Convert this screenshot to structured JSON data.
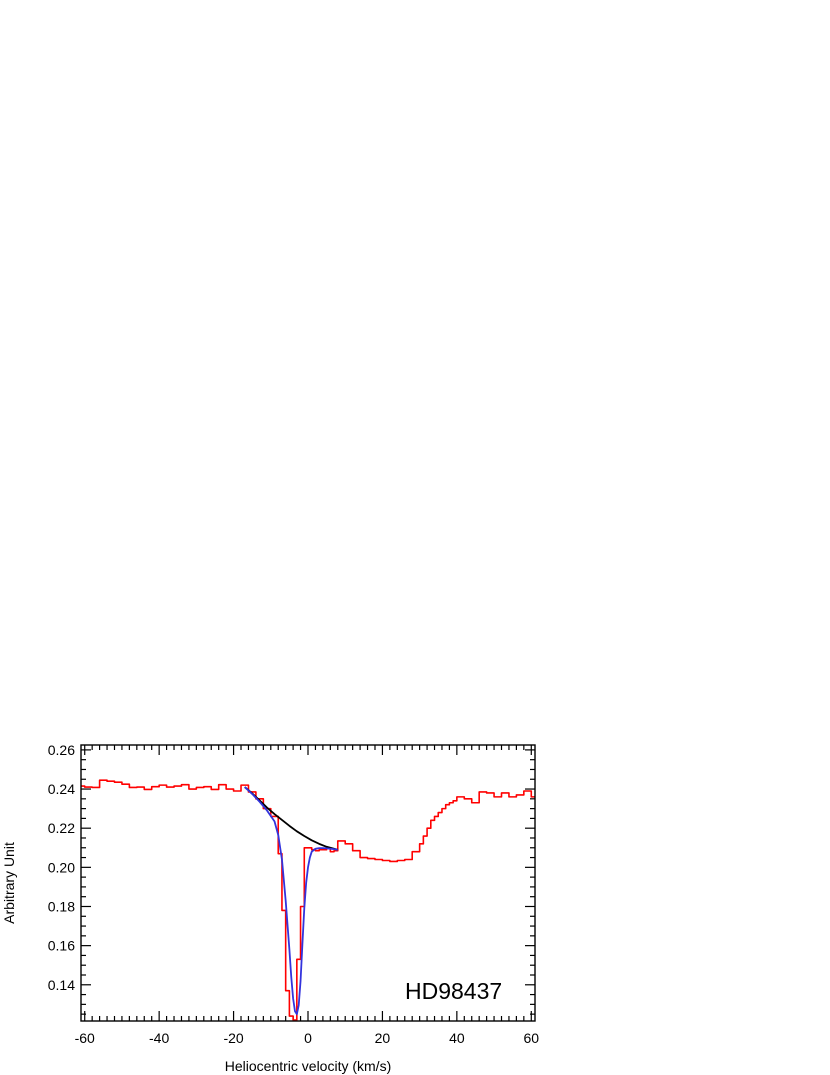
{
  "chart_data": {
    "type": "line",
    "title": "",
    "xlabel": "Heliocentric velocity (km/s)",
    "ylabel": "Arbitrary Unit",
    "annotation": "HD98437",
    "xlim": [
      -61,
      61
    ],
    "ylim": [
      0.1215,
      0.2625
    ],
    "xticks": [
      -60,
      -40,
      -20,
      0,
      20,
      40,
      60
    ],
    "yticks": [
      0.14,
      0.16,
      0.18,
      0.2,
      0.22,
      0.24,
      0.26
    ],
    "xtick_labels": [
      "-60",
      "-40",
      "-20",
      "0",
      "20",
      "40",
      "60"
    ],
    "ytick_labels": [
      "0.14",
      "0.16",
      "0.18",
      "0.20",
      "0.22",
      "0.24",
      "0.26"
    ],
    "grid": false,
    "legend": "none",
    "series": [
      {
        "style": "step",
        "color": "#ff0000",
        "x": [
          -62,
          -60,
          -58,
          -56,
          -54,
          -52,
          -50,
          -48,
          -46,
          -44,
          -42,
          -40,
          -38,
          -36,
          -34,
          -32,
          -30,
          -28,
          -26,
          -24,
          -22,
          -20,
          -18,
          -16,
          -14,
          -12,
          -10,
          -8,
          -7,
          -6,
          -5,
          -4,
          -3,
          -2,
          -1,
          0,
          1,
          2,
          3,
          4,
          5,
          6,
          7,
          8,
          10,
          12,
          14,
          16,
          18,
          20,
          22,
          24,
          26,
          28,
          30,
          31,
          32,
          33,
          34,
          35,
          36,
          37,
          38,
          39,
          40,
          42,
          44,
          46,
          48,
          50,
          52,
          54,
          56,
          58,
          60,
          62
        ],
        "y": [
          0.2415,
          0.241,
          0.2408,
          0.2445,
          0.244,
          0.2435,
          0.2425,
          0.2408,
          0.241,
          0.2398,
          0.2412,
          0.242,
          0.241,
          0.2415,
          0.2422,
          0.24,
          0.2408,
          0.2412,
          0.2398,
          0.2422,
          0.24,
          0.239,
          0.242,
          0.2385,
          0.235,
          0.23,
          0.226,
          0.207,
          0.178,
          0.137,
          0.124,
          0.122,
          0.153,
          0.18,
          0.21,
          0.21,
          0.209,
          0.2085,
          0.209,
          0.209,
          0.21,
          0.208,
          0.2085,
          0.2135,
          0.212,
          0.2085,
          0.205,
          0.2045,
          0.204,
          0.2035,
          0.203,
          0.2035,
          0.204,
          0.208,
          0.212,
          0.216,
          0.22,
          0.224,
          0.226,
          0.228,
          0.23,
          0.232,
          0.233,
          0.234,
          0.236,
          0.235,
          0.233,
          0.2385,
          0.238,
          0.236,
          0.238,
          0.236,
          0.237,
          0.239,
          0.236,
          0.236
        ]
      },
      {
        "style": "line",
        "color": "#000000",
        "x": [
          -17,
          -15,
          -13,
          -11,
          -9,
          -7,
          -5,
          -3,
          -1,
          1,
          3,
          5,
          7,
          8
        ],
        "y": [
          0.241,
          0.2378,
          0.2342,
          0.2305,
          0.2272,
          0.2242,
          0.2212,
          0.2184,
          0.216,
          0.2138,
          0.212,
          0.2105,
          0.2095,
          0.209
        ]
      },
      {
        "style": "line",
        "color": "#3333dd",
        "x": [
          -17,
          -15,
          -13,
          -11,
          -9,
          -8,
          -7,
          -6,
          -5,
          -4.5,
          -4,
          -3.5,
          -3,
          -2.5,
          -2,
          -1.5,
          -1,
          -0.5,
          0,
          0.5,
          1,
          2,
          3,
          4,
          5,
          6,
          7,
          8
        ],
        "y": [
          0.241,
          0.2375,
          0.2335,
          0.229,
          0.2235,
          0.2165,
          0.204,
          0.183,
          0.158,
          0.144,
          0.133,
          0.1265,
          0.125,
          0.1295,
          0.142,
          0.161,
          0.179,
          0.192,
          0.2,
          0.205,
          0.208,
          0.2095,
          0.2098,
          0.2098,
          0.2097,
          0.2095,
          0.2093,
          0.209
        ]
      }
    ]
  }
}
